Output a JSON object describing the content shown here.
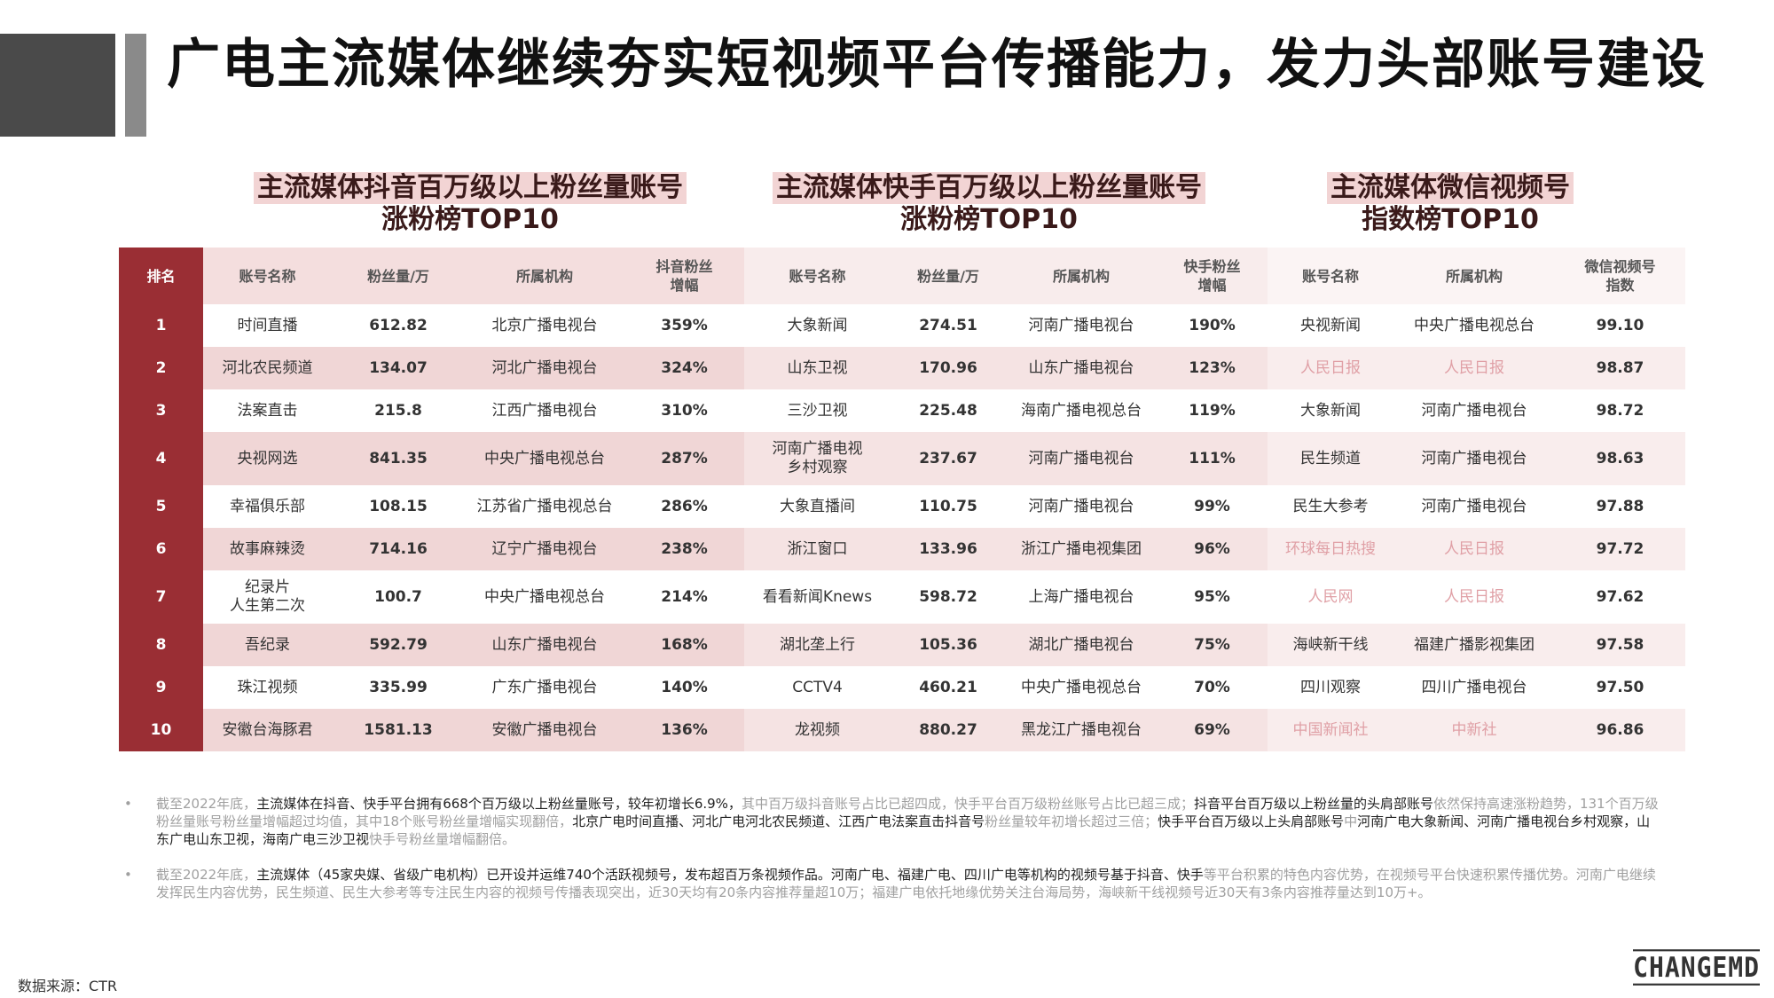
{
  "title": "广电主流媒体继续夯实短视频平台传播能力，发力头部账号建设",
  "sections": [
    {
      "line1": "主流媒体抖音百万级以上粉丝量账号",
      "line2": "涨粉榜TOP10"
    },
    {
      "line1": "主流媒体快手百万级以上粉丝量账号",
      "line2": "涨粉榜TOP10"
    },
    {
      "line1": "主流媒体微信视频号",
      "line2": "指数榜TOP10"
    }
  ],
  "headers": {
    "rank": "排名",
    "dy_name": "账号名称",
    "dy_fans": "粉丝量/万",
    "dy_org": "所属机构",
    "dy_growth": "抖音粉丝\n增幅",
    "ks_name": "账号名称",
    "ks_fans": "粉丝量/万",
    "ks_org": "所属机构",
    "ks_growth": "快手粉丝\n增幅",
    "wx_name": "账号名称",
    "wx_org": "所属机构",
    "wx_index": "微信视频号\n指数"
  },
  "rows": [
    {
      "rank": "1",
      "dy_name": "时间直播",
      "dy_fans": "612.82",
      "dy_org": "北京广播电视台",
      "dy_growth": "359%",
      "ks_name": "大象新闻",
      "ks_fans": "274.51",
      "ks_org": "河南广播电视台",
      "ks_growth": "190%",
      "wx_name": "央视新闻",
      "wx_org": "中央广播电视总台",
      "wx_index": "99.10",
      "wx_faded": false
    },
    {
      "rank": "2",
      "dy_name": "河北农民频道",
      "dy_fans": "134.07",
      "dy_org": "河北广播电视台",
      "dy_growth": "324%",
      "ks_name": "山东卫视",
      "ks_fans": "170.96",
      "ks_org": "山东广播电视台",
      "ks_growth": "123%",
      "wx_name": "人民日报",
      "wx_org": "人民日报",
      "wx_index": "98.87",
      "wx_faded": true
    },
    {
      "rank": "3",
      "dy_name": "法案直击",
      "dy_fans": "215.8",
      "dy_org": "江西广播电视台",
      "dy_growth": "310%",
      "ks_name": "三沙卫视",
      "ks_fans": "225.48",
      "ks_org": "海南广播电视总台",
      "ks_growth": "119%",
      "wx_name": "大象新闻",
      "wx_org": "河南广播电视台",
      "wx_index": "98.72",
      "wx_faded": false
    },
    {
      "rank": "4",
      "dy_name": "央视网选",
      "dy_fans": "841.35",
      "dy_org": "中央广播电视总台",
      "dy_growth": "287%",
      "ks_name": "河南广播电视\n乡村观察",
      "ks_fans": "237.67",
      "ks_org": "河南广播电视台",
      "ks_growth": "111%",
      "wx_name": "民生频道",
      "wx_org": "河南广播电视台",
      "wx_index": "98.63",
      "wx_faded": false
    },
    {
      "rank": "5",
      "dy_name": "幸福俱乐部",
      "dy_fans": "108.15",
      "dy_org": "江苏省广播电视总台",
      "dy_growth": "286%",
      "ks_name": "大象直播间",
      "ks_fans": "110.75",
      "ks_org": "河南广播电视台",
      "ks_growth": "99%",
      "wx_name": "民生大参考",
      "wx_org": "河南广播电视台",
      "wx_index": "97.88",
      "wx_faded": false
    },
    {
      "rank": "6",
      "dy_name": "故事麻辣烫",
      "dy_fans": "714.16",
      "dy_org": "辽宁广播电视台",
      "dy_growth": "238%",
      "ks_name": "浙江窗口",
      "ks_fans": "133.96",
      "ks_org": "浙江广播电视集团",
      "ks_growth": "96%",
      "wx_name": "环球每日热搜",
      "wx_org": "人民日报",
      "wx_index": "97.72",
      "wx_faded": true
    },
    {
      "rank": "7",
      "dy_name": "纪录片\n人生第二次",
      "dy_fans": "100.7",
      "dy_org": "中央广播电视总台",
      "dy_growth": "214%",
      "ks_name": "看看新闻Knews",
      "ks_fans": "598.72",
      "ks_org": "上海广播电视台",
      "ks_growth": "95%",
      "wx_name": "人民网",
      "wx_org": "人民日报",
      "wx_index": "97.62",
      "wx_faded": true
    },
    {
      "rank": "8",
      "dy_name": "吾纪录",
      "dy_fans": "592.79",
      "dy_org": "山东广播电视台",
      "dy_growth": "168%",
      "ks_name": "湖北垄上行",
      "ks_fans": "105.36",
      "ks_org": "湖北广播电视台",
      "ks_growth": "75%",
      "wx_name": "海峡新干线",
      "wx_org": "福建广播影视集团",
      "wx_index": "97.58",
      "wx_faded": false
    },
    {
      "rank": "9",
      "dy_name": "珠江视频",
      "dy_fans": "335.99",
      "dy_org": "广东广播电视台",
      "dy_growth": "140%",
      "ks_name": "CCTV4",
      "ks_fans": "460.21",
      "ks_org": "中央广播电视总台",
      "ks_growth": "70%",
      "wx_name": "四川观察",
      "wx_org": "四川广播电视台",
      "wx_index": "97.50",
      "wx_faded": false
    },
    {
      "rank": "10",
      "dy_name": "安徽台海豚君",
      "dy_fans": "1581.13",
      "dy_org": "安徽广播电视台",
      "dy_growth": "136%",
      "ks_name": "龙视频",
      "ks_fans": "880.27",
      "ks_org": "黑龙江广播电视台",
      "ks_growth": "69%",
      "wx_name": "中国新闻社",
      "wx_org": "中新社",
      "wx_index": "96.86",
      "wx_faded": true
    }
  ],
  "notes": [
    [
      {
        "t": "截至2022年底，",
        "hl": false
      },
      {
        "t": "主流媒体在抖音、快手平台拥有668个百万级以上粉丝量账号，较年初增长6.9%，",
        "hl": true
      },
      {
        "t": "其中百万级抖音账号占比已超四成，快手平台百万级粉丝账号占比已超三成；",
        "hl": false
      },
      {
        "t": "抖音平台百万级以上粉丝量的头肩部账号",
        "hl": true
      },
      {
        "t": "依然保持高速涨粉趋势，131个百万级粉丝量账号粉丝量增幅超过均值，其中18个账号粉丝量增幅实现翻倍，",
        "hl": false
      },
      {
        "t": "北京广电时间直播、河北广电河北农民频道、江西广电法案直击抖音号",
        "hl": true
      },
      {
        "t": "粉丝量较年初增长超过三倍；",
        "hl": false
      },
      {
        "t": "快手平台百万级以上头肩部账号",
        "hl": true
      },
      {
        "t": "中",
        "hl": false
      },
      {
        "t": "河南广电大象新闻、河南广播电视台乡村观察，山东广电山东卫视，海南广电三沙卫视",
        "hl": true
      },
      {
        "t": "快手号粉丝量增幅翻倍。",
        "hl": false
      }
    ],
    [
      {
        "t": "截至2022年底，",
        "hl": false
      },
      {
        "t": "主流媒体（45家央媒、省级广电机构）已开设并运维740个活跃视频号，发布超百万条视频作品。河南广电、福建广电、四川广电等机构的视频号基于抖音、快手",
        "hl": true
      },
      {
        "t": "等平台积累的特色内容优势，在视频号平台快速积累传播优势。河南广电继续发挥民生内容优势，民生频道、民生大参考等专注民生内容的视频号传播表现突出，近30天均有20条内容推荐量超10万；福建广电依托地缘优势关注台海局势，海峡新干线视频号近30天有3条内容推荐量达到10万+。",
        "hl": false
      }
    ]
  ],
  "source": "数据来源：CTR",
  "logo": "CHANGEMD",
  "colors": {
    "accent": "#9a2e34",
    "header_pink": "#f4dede",
    "faded_text": "#e0a0a6"
  }
}
